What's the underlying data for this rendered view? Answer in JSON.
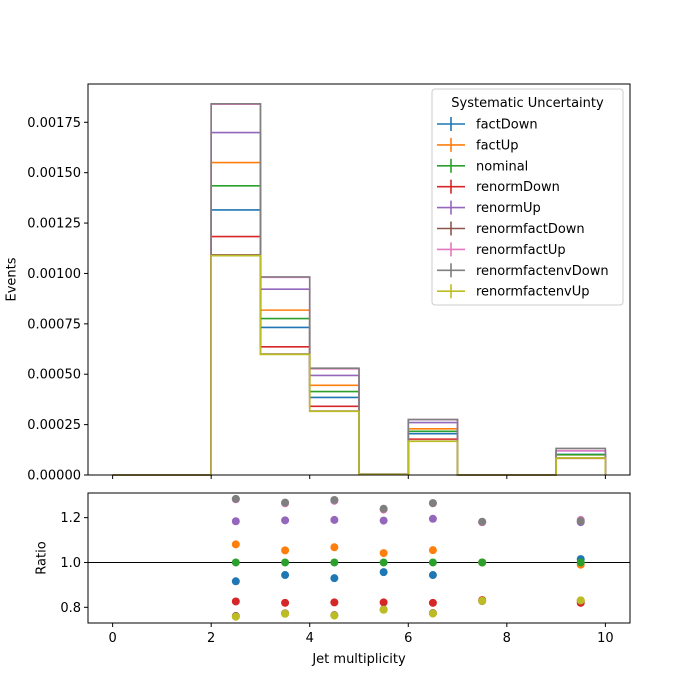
{
  "chart_data": [
    {
      "type": "step",
      "ylabel": "Events",
      "xlim": [
        -0.5,
        10.5
      ],
      "ylim": [
        0,
        0.00194
      ],
      "bin_edges": [
        0,
        1,
        2,
        3,
        4,
        5,
        6,
        7,
        8,
        9,
        10
      ],
      "yticks": [
        0.0,
        0.00025,
        0.0005,
        0.00075,
        0.001,
        0.00125,
        0.0015,
        0.00175
      ],
      "ytick_labels": [
        "0.00000",
        "0.00025",
        "0.00050",
        "0.00075",
        "0.00100",
        "0.00125",
        "0.00150",
        "0.00175"
      ],
      "legend": {
        "title": "Systematic Uncertainty",
        "placement": "upper right"
      },
      "series": [
        {
          "name": "factDown",
          "color": "#1f77b4",
          "values": [
            0,
            0,
            0.001315,
            0.000732,
            0.000385,
            3e-06,
            0.000205,
            0,
            0,
            0.000102
          ]
        },
        {
          "name": "factUp",
          "color": "#ff7f0e",
          "values": [
            0,
            0,
            0.00155,
            0.000818,
            0.000445,
            3e-06,
            0.000229,
            0,
            0,
            0.0001
          ]
        },
        {
          "name": "nominal",
          "color": "#2ca02c",
          "values": [
            0,
            0,
            0.001435,
            0.000776,
            0.000414,
            3e-06,
            0.000217,
            0,
            0,
            0.000101
          ]
        },
        {
          "name": "renormDown",
          "color": "#d62728",
          "values": [
            0,
            0,
            0.001183,
            0.000636,
            0.000341,
            3e-06,
            0.000178,
            0,
            0,
            8.3e-05
          ]
        },
        {
          "name": "renormUp",
          "color": "#9467bd",
          "values": [
            0,
            0,
            0.001699,
            0.000922,
            0.000494,
            4e-06,
            0.00026,
            0,
            0,
            0.00012
          ]
        },
        {
          "name": "renormfactDown",
          "color": "#8c564b",
          "values": [
            0,
            0,
            0.001092,
            0.0006,
            0.000317,
            3e-06,
            0.000168,
            0,
            0,
            8.4e-05
          ]
        },
        {
          "name": "renormfactUp",
          "color": "#e377c2",
          "values": [
            0,
            0,
            0.00184,
            0.000981,
            0.000527,
            4e-06,
            0.000275,
            0,
            0,
            0.000121
          ]
        },
        {
          "name": "renormfactenvDown",
          "color": "#7f7f7f",
          "values": [
            0,
            0,
            0.001842,
            0.000983,
            0.00053,
            4e-06,
            0.000275,
            0,
            0,
            0.000132
          ]
        },
        {
          "name": "renormfactenvUp",
          "color": "#bcbd22",
          "values": [
            0,
            0,
            0.001088,
            0.000598,
            0.000316,
            3e-06,
            0.000167,
            0,
            0,
            8.4e-05
          ]
        }
      ]
    },
    {
      "type": "scatter",
      "xlabel": "Jet multiplicity",
      "ylabel": "Ratio",
      "xlim": [
        -0.5,
        10.5
      ],
      "ylim": [
        0.73,
        1.31
      ],
      "xticks": [
        0,
        2,
        4,
        6,
        8,
        10
      ],
      "xtick_labels": [
        "0",
        "2",
        "4",
        "6",
        "8",
        "10"
      ],
      "yticks": [
        0.8,
        1.0,
        1.2
      ],
      "ytick_labels": [
        "0.8",
        "1.0",
        "1.2"
      ],
      "reference_line": 1.0,
      "x": [
        2.5,
        3.5,
        4.5,
        5.5,
        6.5,
        7.5,
        9.5
      ],
      "series": [
        {
          "name": "factDown",
          "color": "#1f77b4",
          "values": [
            0.916,
            0.944,
            0.93,
            0.957,
            0.944,
            1.0,
            1.015
          ]
        },
        {
          "name": "factUp",
          "color": "#ff7f0e",
          "values": [
            1.081,
            1.054,
            1.068,
            1.042,
            1.055,
            1.0,
            0.99
          ]
        },
        {
          "name": "nominal",
          "color": "#2ca02c",
          "values": [
            1.0,
            1.0,
            1.0,
            1.0,
            1.0,
            1.0,
            1.0
          ]
        },
        {
          "name": "renormDown",
          "color": "#d62728",
          "values": [
            0.826,
            0.82,
            0.822,
            0.822,
            0.82,
            0.832,
            0.82
          ]
        },
        {
          "name": "renormUp",
          "color": "#9467bd",
          "values": [
            1.184,
            1.188,
            1.19,
            1.187,
            1.195,
            1.18,
            1.18
          ]
        },
        {
          "name": "renormfactDown",
          "color": "#8c564b",
          "values": [
            0.761,
            0.773,
            0.765,
            0.79,
            0.774,
            0.828,
            0.83
          ]
        },
        {
          "name": "renormfactUp",
          "color": "#e377c2",
          "values": [
            1.282,
            1.264,
            1.275,
            1.236,
            1.264,
            1.18,
            1.19
          ]
        },
        {
          "name": "renormfactenvDown",
          "color": "#7f7f7f",
          "values": [
            1.284,
            1.267,
            1.279,
            1.24,
            1.265,
            1.182,
            1.185
          ]
        },
        {
          "name": "renormfactenvUp",
          "color": "#bcbd22",
          "values": [
            0.758,
            0.771,
            0.763,
            0.789,
            0.772,
            0.829,
            0.831
          ]
        }
      ]
    }
  ]
}
